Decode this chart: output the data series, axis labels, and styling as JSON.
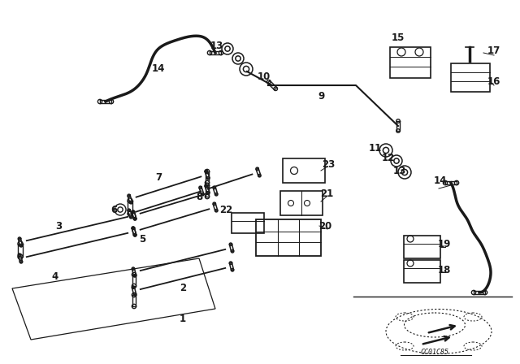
{
  "bg_color": "#ffffff",
  "line_color": "#1a1a1a",
  "diagram_code": "CC01C85"
}
